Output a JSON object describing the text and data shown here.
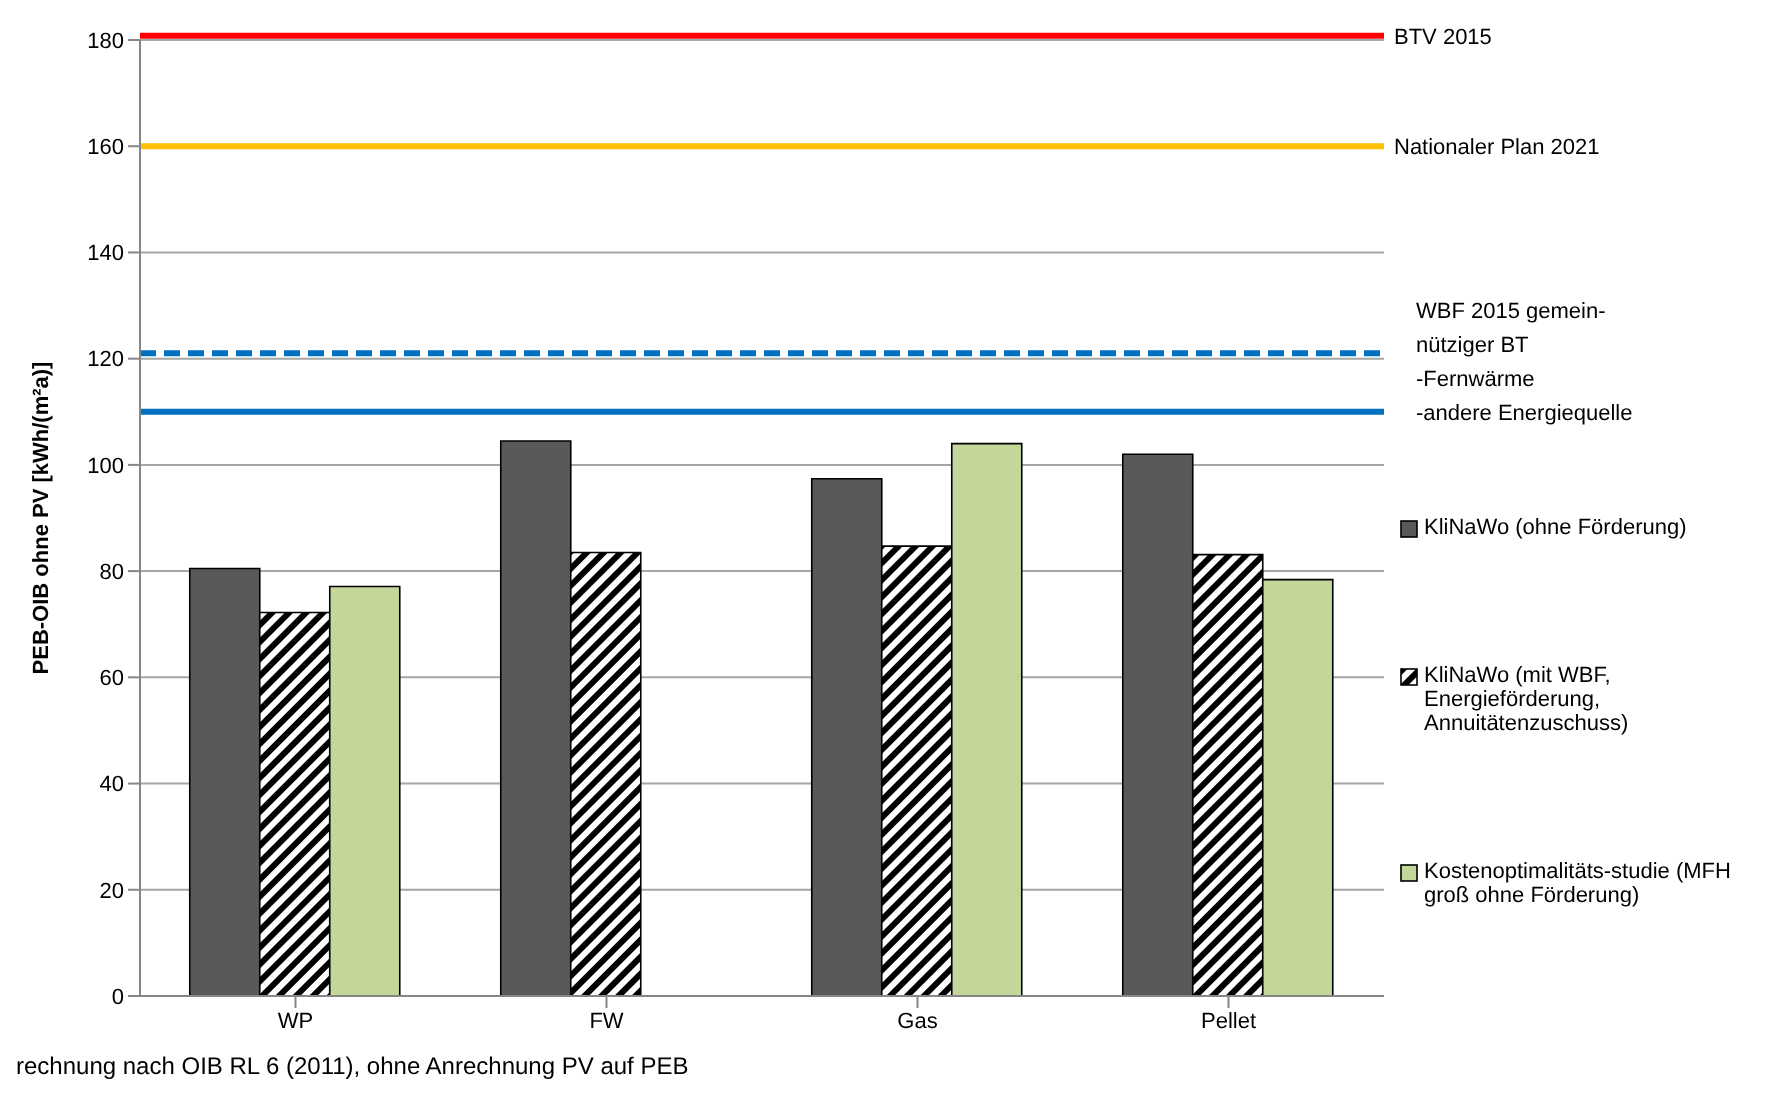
{
  "chart_data": {
    "type": "bar",
    "ylabel": "PEB-OIB ohne PV [kWh/(m²a)]",
    "categories": [
      "WP",
      "FW",
      "Gas",
      "Pellet"
    ],
    "series": [
      {
        "name": "KliNaWo (ohne Förderung)",
        "color": "#595959",
        "values": [
          80.5,
          104.5,
          97.4,
          102
        ]
      },
      {
        "name": "KliNaWo (mit WBF, Energieförderung, Annuitätenzuschuss)",
        "color": "#000000",
        "values": [
          72.2,
          83.5,
          84.7,
          83.1
        ]
      },
      {
        "name": "Kostenoptimalitäts-studie (MFH groß ohne Förderung)",
        "color": "#c4d79b",
        "values": [
          77.1,
          null,
          104,
          78.4
        ]
      }
    ],
    "ylim": [
      0,
      180
    ],
    "yticks": [
      0,
      20,
      40,
      60,
      80,
      100,
      120,
      140,
      160,
      180
    ],
    "grid": "y",
    "legend": "right",
    "ref_lines": [
      {
        "axis": "y",
        "value": 180.8,
        "label": "BTV 2015",
        "color": "#ff0000",
        "line_style": "solid"
      },
      {
        "axis": "y",
        "value": 160,
        "label": "Nationaler Plan 2021",
        "color": "#ffc000",
        "line_style": "solid"
      },
      {
        "axis": "y",
        "value": 121,
        "color": "#0070c0",
        "line_style": "dashed"
      },
      {
        "axis": "y",
        "value": 110,
        "color": "#0070c0",
        "line_style": "solid"
      }
    ],
    "annotations": [
      "WBF 2015 gemein-\nnütziger BT\n-Fernwärme\n-andere Energiequelle",
      "rechnung nach OIB RL 6 (2011), ohne Anrechnung PV auf PEB"
    ]
  }
}
